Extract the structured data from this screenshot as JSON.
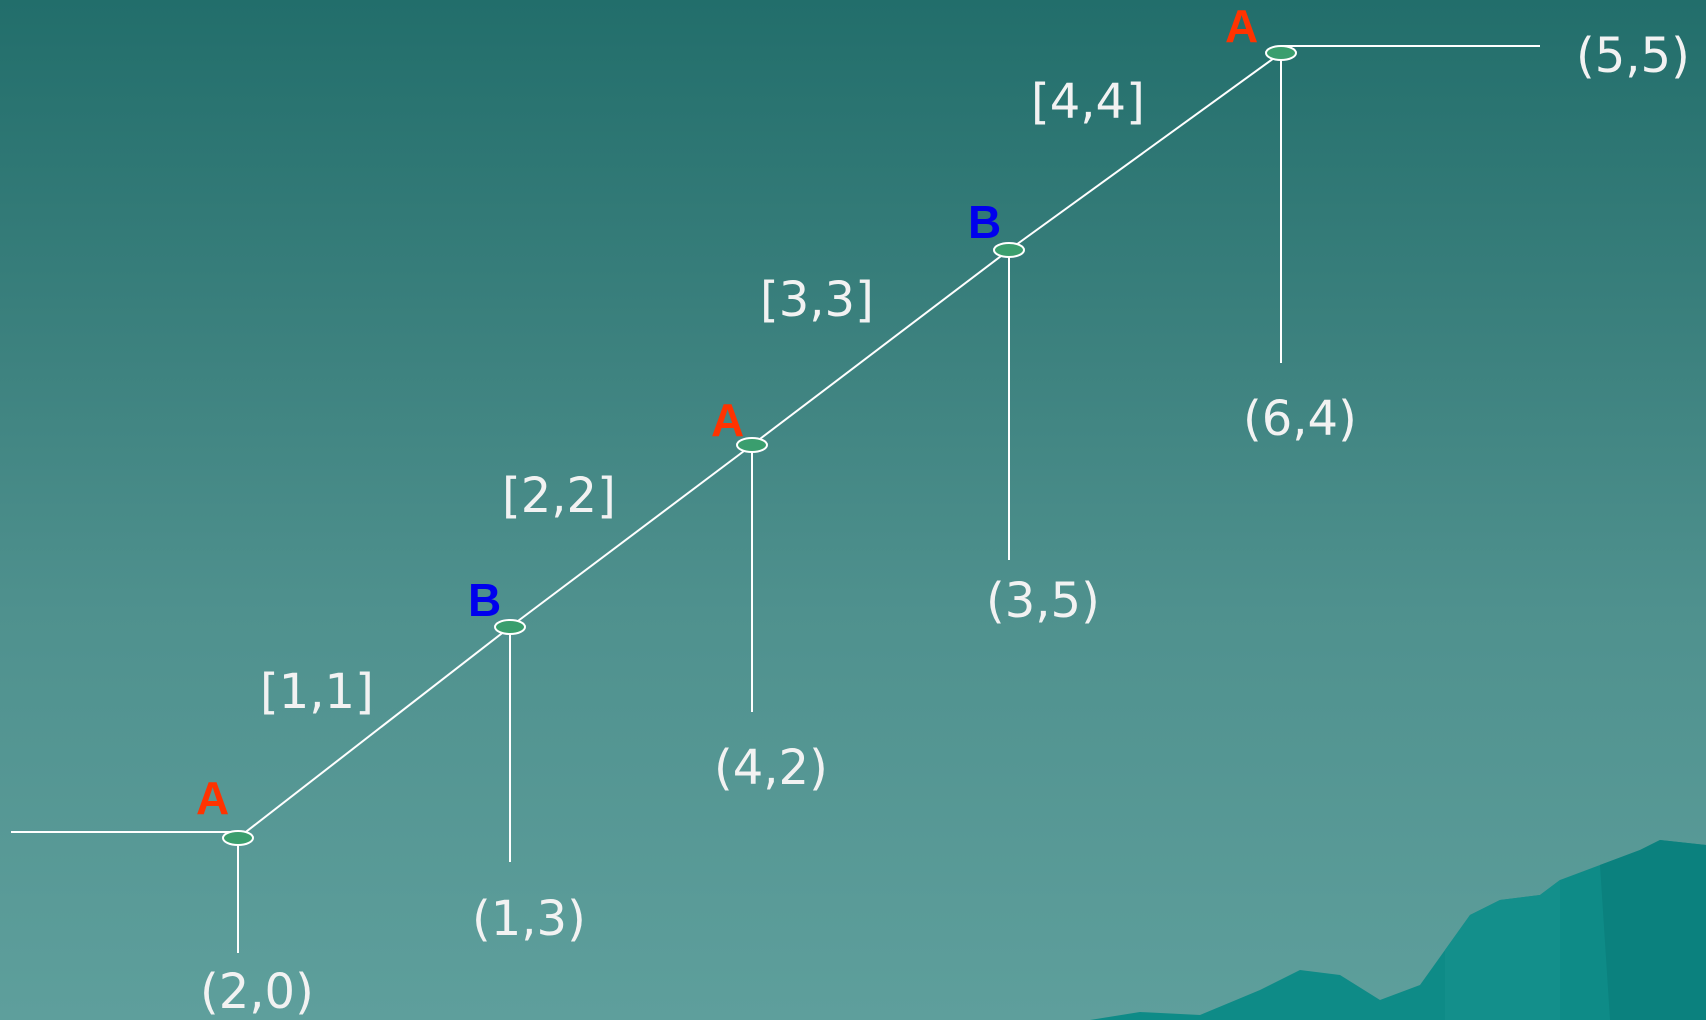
{
  "colors": {
    "player_a": "#ff3300",
    "player_b": "#0000ee",
    "line": "#ffffff",
    "node_fill": "#3a9e6e",
    "label": "#f2f2f2",
    "mountain": "#0e8b87"
  },
  "players": {
    "a": "A",
    "b": "B"
  },
  "decision_nodes": [
    {
      "player": "A",
      "stage_label": "[1,1]",
      "stop_payoff": "(2,0)"
    },
    {
      "player": "B",
      "stage_label": "[2,2]",
      "stop_payoff": "(1,3)"
    },
    {
      "player": "A",
      "stage_label": "[3,3]",
      "stop_payoff": "(4,2)"
    },
    {
      "player": "B",
      "stage_label": "[4,4]",
      "stop_payoff": "(3,5)"
    },
    {
      "player": "A",
      "stage_label": "",
      "stop_payoff": "(6,4)"
    }
  ],
  "terminal_payoff": "(5,5)"
}
